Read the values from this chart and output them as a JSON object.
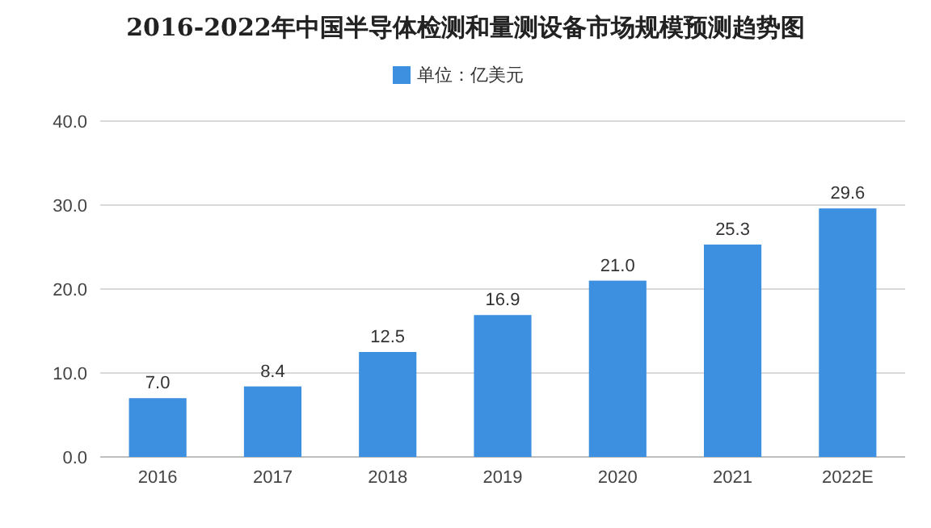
{
  "chart_data": {
    "type": "bar",
    "title": "2016-2022年中国半导体检测和量测设备市场规模预测趋势图",
    "categories": [
      "2016",
      "2017",
      "2018",
      "2019",
      "2020",
      "2021",
      "2022E"
    ],
    "series": [
      {
        "name": "单位：亿美元",
        "color": "#3d8fe0",
        "values": [
          7.0,
          8.4,
          12.5,
          16.9,
          21.0,
          25.3,
          29.6
        ],
        "value_labels": [
          "7.0",
          "8.4",
          "12.5",
          "16.9",
          "21.0",
          "25.3",
          "29.6"
        ]
      }
    ],
    "ylim": [
      0,
      40
    ],
    "yticks": [
      {
        "value": 0,
        "label": "0.0"
      },
      {
        "value": 10,
        "label": "10.0"
      },
      {
        "value": 20,
        "label": "20.0"
      },
      {
        "value": 30,
        "label": "30.0"
      },
      {
        "value": 40,
        "label": "40.0"
      }
    ],
    "grid": "y",
    "legend": "top"
  }
}
